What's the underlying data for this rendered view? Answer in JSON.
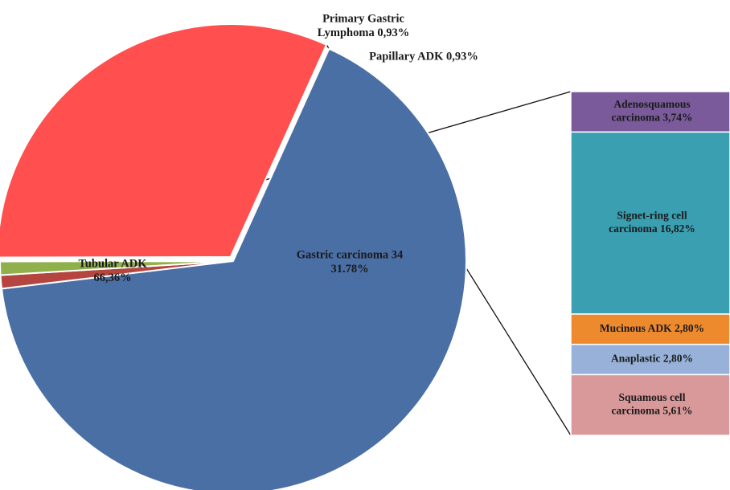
{
  "chart_data": {
    "type": "pie",
    "subtype": "pie-of-bar",
    "title": "",
    "pie": {
      "slices": [
        {
          "label_lines": [
            "Tubular ADK",
            "66,36%"
          ],
          "value": 66.36,
          "color": "#4A6FA5",
          "label_placement": "inside"
        },
        {
          "label_lines": [
            "Primary Gastric",
            "Lymphoma 0,93%"
          ],
          "value": 0.93,
          "color": "#B5453F",
          "label_placement": "outside-top"
        },
        {
          "label_lines": [
            "Papillary ADK 0,93%"
          ],
          "value": 0.93,
          "color": "#8FB04A",
          "label_placement": "outside-right"
        },
        {
          "label_lines": [
            "Gastric carcinoma 34",
            "31.78%"
          ],
          "value": 31.78,
          "color": "#FF4F4F",
          "label_placement": "inside",
          "exploded": true
        }
      ]
    },
    "bar": {
      "source_slice": "Gastric carcinoma 34",
      "segments": [
        {
          "label_lines": [
            "Adenosquamous",
            "carcinoma 3,74%"
          ],
          "value": 3.74,
          "color": "#7A5A9B"
        },
        {
          "label_lines": [
            "Signet-ring cell",
            "carcinoma  16,82%"
          ],
          "value": 16.82,
          "color": "#3A9FB1"
        },
        {
          "label_lines": [
            "Mucinous ADK 2,80%"
          ],
          "value": 2.8,
          "color": "#EE8A2E"
        },
        {
          "label_lines": [
            "Anaplastic 2,80%"
          ],
          "value": 2.8,
          "color": "#97B1D9"
        },
        {
          "label_lines": [
            "Squamous cell",
            "carcinoma 5,61%"
          ],
          "value": 5.61,
          "color": "#D9999A"
        }
      ]
    }
  }
}
